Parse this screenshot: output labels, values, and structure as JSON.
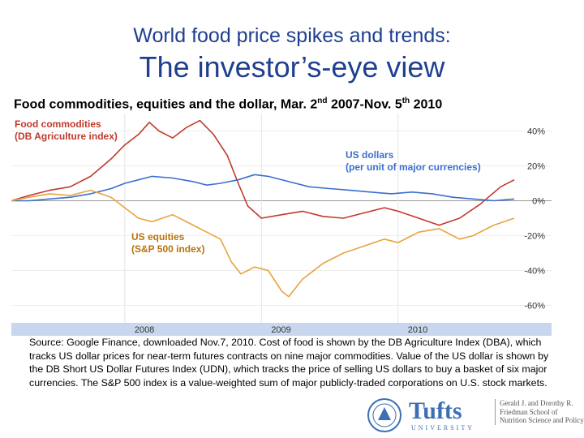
{
  "header": {
    "subtitle": "World food price spikes and trends:",
    "title": "The investor’s-eye view"
  },
  "caption": {
    "main": "Food commodities,  equities and the dollar, Mar. 2",
    "sup1": "nd",
    "mid": " 2007-Nov. 5",
    "sup2": "th",
    "end": " 2010"
  },
  "colors": {
    "food": "#c0392b",
    "dollar": "#3a6fcf",
    "equities": "#e8a33d",
    "title": "#1f3f8f",
    "label_food": "#c0392b",
    "label_dollar": "#3a6fcf",
    "label_equities": "#b8730a",
    "axis_band": "#c9d7ee"
  },
  "chart_data": {
    "type": "line",
    "title": "Food commodities,  equities and the dollar, Mar. 2nd 2007-Nov. 5th 2010",
    "xlabel": "",
    "ylabel": "",
    "xlim": [
      2007.17,
      2010.85
    ],
    "ylim": [
      -70,
      50
    ],
    "x_ticks": [
      {
        "value": 2008,
        "label": "2008"
      },
      {
        "value": 2009,
        "label": "2009"
      },
      {
        "value": 2010,
        "label": "2010"
      }
    ],
    "y_ticks": [
      {
        "value": 40,
        "label": "40%"
      },
      {
        "value": 20,
        "label": "20%"
      },
      {
        "value": 0,
        "label": "0%"
      },
      {
        "value": -20,
        "label": "-20%"
      },
      {
        "value": -40,
        "label": "-40%"
      },
      {
        "value": -60,
        "label": "-60%"
      }
    ],
    "series": [
      {
        "name": "Food commodities (DB Agriculture index)",
        "label_lines": [
          "Food commodities",
          "(DB Agriculture index)"
        ],
        "color_key": "food",
        "x": [
          2007.17,
          2007.3,
          2007.45,
          2007.6,
          2007.75,
          2007.9,
          2008.0,
          2008.1,
          2008.18,
          2008.25,
          2008.35,
          2008.45,
          2008.55,
          2008.65,
          2008.75,
          2008.83,
          2008.9,
          2009.0,
          2009.15,
          2009.3,
          2009.45,
          2009.6,
          2009.75,
          2009.9,
          2010.0,
          2010.15,
          2010.3,
          2010.45,
          2010.6,
          2010.75,
          2010.85
        ],
        "values": [
          0,
          3,
          6,
          8,
          14,
          24,
          32,
          38,
          45,
          40,
          36,
          42,
          46,
          38,
          26,
          10,
          -3,
          -10,
          -8,
          -6,
          -9,
          -10,
          -7,
          -4,
          -6,
          -10,
          -14,
          -10,
          -2,
          8,
          12
        ]
      },
      {
        "name": "US dollars (per unit of major currencies)",
        "label_lines": [
          "US dollars",
          "(per unit of major currencies)"
        ],
        "color_key": "dollar",
        "x": [
          2007.17,
          2007.3,
          2007.45,
          2007.6,
          2007.75,
          2007.9,
          2008.0,
          2008.1,
          2008.2,
          2008.35,
          2008.5,
          2008.6,
          2008.7,
          2008.83,
          2008.95,
          2009.05,
          2009.2,
          2009.35,
          2009.5,
          2009.65,
          2009.8,
          2009.95,
          2010.1,
          2010.25,
          2010.4,
          2010.55,
          2010.7,
          2010.85
        ],
        "values": [
          0,
          0,
          1,
          2,
          4,
          7,
          10,
          12,
          14,
          13,
          11,
          9,
          10,
          12,
          15,
          14,
          11,
          8,
          7,
          6,
          5,
          4,
          5,
          4,
          2,
          1,
          0,
          1
        ]
      },
      {
        "name": "US equities (S&P 500 index)",
        "label_lines": [
          "US equities",
          "(S&P 500 index)"
        ],
        "color_key": "equities",
        "x": [
          2007.17,
          2007.3,
          2007.45,
          2007.6,
          2007.75,
          2007.9,
          2008.0,
          2008.1,
          2008.2,
          2008.35,
          2008.5,
          2008.6,
          2008.7,
          2008.78,
          2008.85,
          2008.95,
          2009.05,
          2009.15,
          2009.2,
          2009.3,
          2009.45,
          2009.6,
          2009.75,
          2009.9,
          2010.0,
          2010.15,
          2010.3,
          2010.45,
          2010.55,
          2010.7,
          2010.85
        ],
        "values": [
          0,
          2,
          4,
          3,
          6,
          2,
          -4,
          -10,
          -12,
          -8,
          -14,
          -18,
          -22,
          -35,
          -42,
          -38,
          -40,
          -52,
          -55,
          -45,
          -36,
          -30,
          -26,
          -22,
          -24,
          -18,
          -16,
          -22,
          -20,
          -14,
          -10
        ]
      }
    ]
  },
  "source_text": "Source:  Google Finance, downloaded Nov.7, 2010.  Cost of food is shown by the DB Agriculture Index (DBA), which tracks US dollar prices for near-term futures contracts on nine major commodities.  Value of the US dollar is shown by the DB Short US Dollar Futures Index (UDN), which tracks the price of selling US dollars to buy a basket of six major currencies.  The S&P 500 index is a value-weighted sum of major publicly-traded corporations on U.S. stock markets.",
  "logo": {
    "word": "Tufts",
    "university": "UNIVERSITY",
    "school_lines": [
      "Gerald J. and Dorothy R.",
      "Friedman School of",
      "Nutrition Science and Policy"
    ]
  }
}
